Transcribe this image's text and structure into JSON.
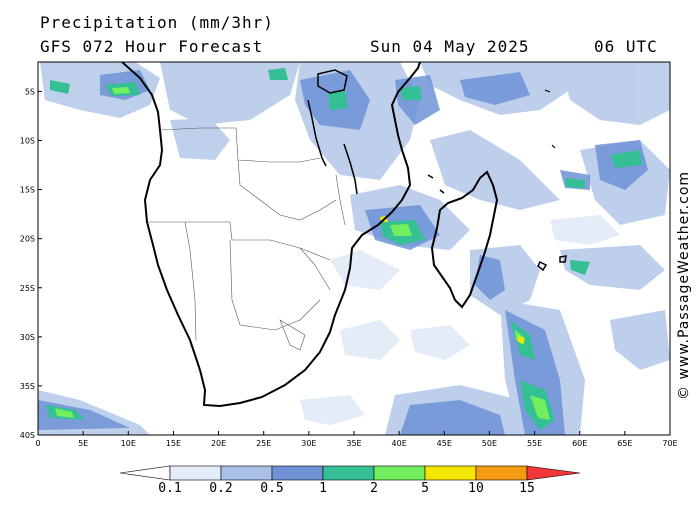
{
  "header": {
    "line1": "Precipitation (mm/3hr)",
    "line2": "GFS 072 Hour Forecast",
    "date": "Sun 04 May 2025",
    "time": "06 UTC"
  },
  "credit": "© www.PassageWeather.com",
  "map": {
    "lat_labels": [
      "5S",
      "10S",
      "15S",
      "20S",
      "25S",
      "30S",
      "35S",
      "40S"
    ],
    "lon_labels": [
      "0",
      "5E",
      "10E",
      "15E",
      "20E",
      "25E",
      "30E",
      "35E",
      "40E",
      "45E",
      "50E",
      "55E",
      "60E",
      "65E",
      "70E"
    ],
    "lat_range": [
      -2,
      -40
    ],
    "lon_range": [
      0,
      70
    ]
  },
  "legend": {
    "levels": [
      "0.1",
      "0.2",
      "0.5",
      "1",
      "2",
      "5",
      "10",
      "15"
    ],
    "colors": [
      "#ffffff",
      "#e4ecf8",
      "#a9c0e6",
      "#6f92d6",
      "#35bf95",
      "#73ee5e",
      "#f4e600",
      "#f59a13",
      "#f0373a"
    ]
  }
}
